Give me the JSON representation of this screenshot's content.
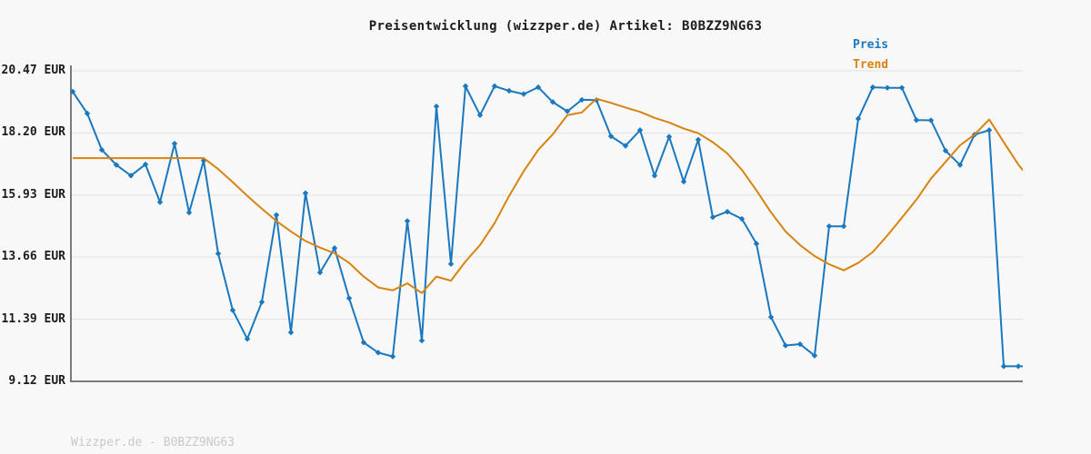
{
  "watermark": {
    "text": "Wizzper.de - B0BZZ9NG63"
  },
  "chart_data": {
    "type": "line",
    "title": "Preisentwicklung (wizzper.de) Artikel: B0BZZ9NG63",
    "xlabel": "",
    "ylabel": "",
    "ylim": [
      9.12,
      20.47
    ],
    "grid": true,
    "legend_position": "top-right",
    "yticks": [
      {
        "label": "20.47 EUR",
        "value": 20.47
      },
      {
        "label": "18.20 EUR",
        "value": 18.2
      },
      {
        "label": "15.93 EUR",
        "value": 15.93
      },
      {
        "label": "13.66 EUR",
        "value": 13.66
      },
      {
        "label": "11.39 EUR",
        "value": 11.39
      },
      {
        "label": "9.12 EUR",
        "value": 9.12
      }
    ],
    "colors": {
      "preis": "#1a78be",
      "trend": "#d8820f",
      "grid": "#e2e2e2",
      "axis": "#7a7a7a"
    },
    "series": [
      {
        "name": "Preis",
        "color": "#1a78be",
        "marker": "diamond",
        "values": [
          19.71,
          18.91,
          17.58,
          17.03,
          16.64,
          17.05,
          15.67,
          17.81,
          15.29,
          17.19,
          13.79,
          11.72,
          10.67,
          12.02,
          15.2,
          10.91,
          16.0,
          13.1,
          13.99,
          12.16,
          10.54,
          10.17,
          10.03,
          14.98,
          10.61,
          19.17,
          13.41,
          19.91,
          18.85,
          19.91,
          19.74,
          19.62,
          19.87,
          19.33,
          18.99,
          19.41,
          19.4,
          18.08,
          17.73,
          18.3,
          16.64,
          18.06,
          16.42,
          17.95,
          15.12,
          15.32,
          15.06,
          14.15,
          11.47,
          10.43,
          10.48,
          10.06,
          14.79,
          14.79,
          18.72,
          19.87,
          19.85,
          19.85,
          18.67,
          18.66,
          17.55,
          17.03,
          18.14,
          18.3,
          9.67,
          9.67,
          9.67
        ]
      },
      {
        "name": "Trend",
        "color": "#d8820f",
        "marker": "none",
        "values": [
          17.28,
          17.28,
          17.28,
          17.28,
          17.28,
          17.28,
          17.28,
          17.28,
          17.28,
          17.28,
          16.88,
          16.4,
          15.9,
          15.43,
          14.98,
          14.6,
          14.25,
          14.01,
          13.8,
          13.45,
          12.95,
          12.55,
          12.45,
          12.7,
          12.35,
          12.95,
          12.8,
          13.5,
          14.1,
          14.9,
          15.9,
          16.8,
          17.58,
          18.15,
          18.85,
          18.95,
          19.45,
          19.3,
          19.13,
          18.97,
          18.75,
          18.58,
          18.36,
          18.19,
          17.86,
          17.45,
          16.85,
          16.1,
          15.3,
          14.6,
          14.1,
          13.7,
          13.4,
          13.18,
          13.45,
          13.85,
          14.45,
          15.1,
          15.76,
          16.53,
          17.14,
          17.75,
          18.14,
          18.69,
          17.86,
          17.05,
          16.4
        ]
      }
    ]
  }
}
